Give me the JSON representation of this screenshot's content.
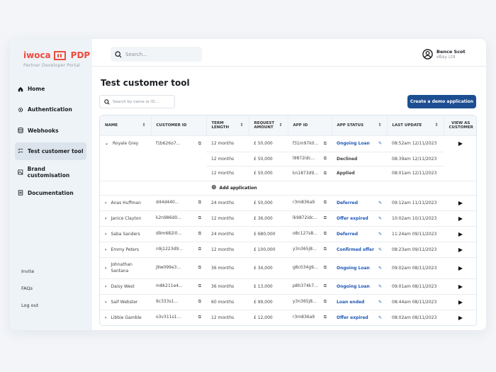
{
  "brand": {
    "name": "iwoca",
    "product": "PDP",
    "subtitle": "Partner Developer Portal",
    "color": "#ef4b3f"
  },
  "sidebar": {
    "items": [
      {
        "label": "Home",
        "icon": "home-icon"
      },
      {
        "label": "Authentication",
        "icon": "gear-icon"
      },
      {
        "label": "Webhooks",
        "icon": "database-icon"
      },
      {
        "label": "Test customer tool",
        "icon": "checklist-icon",
        "active": true
      },
      {
        "label": "Brand customisation",
        "icon": "image-icon"
      },
      {
        "label": "Documentation",
        "icon": "document-icon"
      }
    ],
    "bottom": [
      "Invite",
      "FAQs",
      "Log out"
    ]
  },
  "header": {
    "search_placeholder": "Search...",
    "user_name": "Bence Scot",
    "company": "eBay Ltd"
  },
  "main": {
    "title": "Test customer tool",
    "search_placeholder": "Search by name or ID...",
    "create_button": "Create a demo application",
    "accent": "#1c4e91",
    "add_application": "Add application"
  },
  "table": {
    "columns": [
      "NAME",
      "CUSTOMER ID",
      "TERM LENGTH",
      "REQUEST AMOUNT",
      "APP ID",
      "APP STATUS",
      "LAST UPDATE",
      "VIEW AS CUSTOMER"
    ],
    "expanded": {
      "name": "Royale Grey",
      "customer_id": "f1b626o7...",
      "apps": [
        {
          "term": "12 months",
          "amount": "£ 50,000",
          "app_id": "f31m97k0...",
          "status": "Ongoing Loan",
          "update": "08:52am  12/11/2023",
          "editable": true
        },
        {
          "term": "12 months",
          "amount": "£ 50,000",
          "app_id": "l9872idc...",
          "status": "Declined",
          "update": "08:39am  12/11/2023",
          "editable": false
        },
        {
          "term": "12 months",
          "amount": "£ 50,000",
          "app_id": "kn1873d9...",
          "status": "Applied",
          "update": "08:01am  12/11/2023",
          "editable": false
        }
      ]
    },
    "rows": [
      {
        "name": "Anas Huffman",
        "customer_id": "d44d440...",
        "term": "24 months",
        "amount": "£ 50,000",
        "app_id": "r3m836a9",
        "status": "Deferred",
        "update": "09:12am  11/11/2023"
      },
      {
        "name": "Janice Clayton",
        "customer_id": "k2n986d0...",
        "term": "12 months",
        "amount": "£ 36,000",
        "app_id": "lk9872idc...",
        "status": "Offer expired",
        "update": "10:02am  10/11/2023"
      },
      {
        "name": "Saba Sanders",
        "customer_id": "d9m682i0...",
        "term": "24 months",
        "amount": "£ 680,000",
        "app_id": "o8c127s8...",
        "status": "Deferred",
        "update": "11:24am  09/11/2023"
      },
      {
        "name": "Emmy Peters",
        "customer_id": "n9j1223d9...",
        "term": "12 months",
        "amount": "£ 100,000",
        "app_id": "y3n365j8...",
        "status": "Confirmed offer",
        "update": "08:23am  09/11/2023"
      },
      {
        "name": "Johnathan Santana",
        "customer_id": "j9w099e3...",
        "term": "36 months",
        "amount": "£ 34,000",
        "app_id": "g8c034g9...",
        "status": "Ongoing Loan",
        "update": "09:02am  08/11/2023"
      },
      {
        "name": "Daisy West",
        "customer_id": "m8k211e4...",
        "term": "36 months",
        "amount": "£ 13,000",
        "app_id": "p8h374k7...",
        "status": "Ongoing Loan",
        "update": "09:01am  08/11/2023"
      },
      {
        "name": "Saif Webster",
        "customer_id": "9c333s1...",
        "term": "60 months",
        "amount": "£ 99,000",
        "app_id": "y3n365j8...",
        "status": "Loan ended",
        "update": "08:44am  08/11/2023"
      },
      {
        "name": "Libbie Gamble",
        "customer_id": "o3v311s1...",
        "term": "12 months",
        "amount": "£ 12,000",
        "app_id": "r3m836a9",
        "status": "Offer expired",
        "update": "08:02am  08/11/2023"
      }
    ]
  }
}
